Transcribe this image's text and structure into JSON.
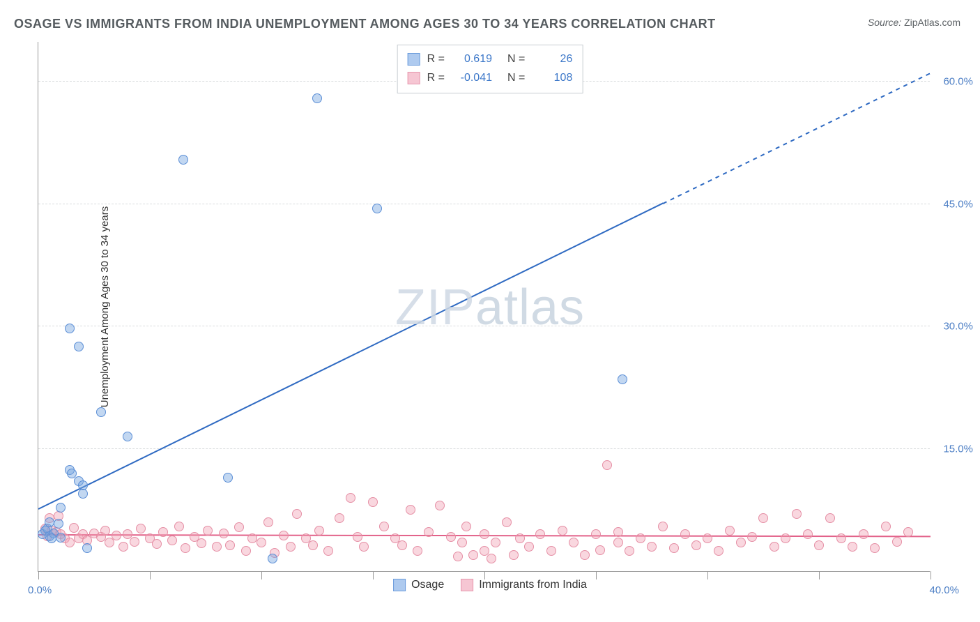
{
  "title": "OSAGE VS IMMIGRANTS FROM INDIA UNEMPLOYMENT AMONG AGES 30 TO 34 YEARS CORRELATION CHART",
  "source_label": "Source:",
  "source_value": "ZipAtlas.com",
  "ylabel": "Unemployment Among Ages 30 to 34 years",
  "watermark_a": "ZIP",
  "watermark_b": "atlas",
  "chart": {
    "type": "scatter",
    "xlim": [
      0,
      40
    ],
    "ylim": [
      0,
      65
    ],
    "background_color": "#ffffff",
    "grid_color": "#d9dcde",
    "axis_color": "#999999",
    "tick_label_color": "#4d7fc5",
    "x_tick_positions": [
      0,
      5,
      10,
      15,
      20,
      25,
      30,
      35,
      40
    ],
    "x_axis_start_label": "0.0%",
    "x_axis_end_label": "40.0%",
    "y_ticks": [
      {
        "pos": 15,
        "label": "15.0%"
      },
      {
        "pos": 30,
        "label": "30.0%"
      },
      {
        "pos": 45,
        "label": "45.0%"
      },
      {
        "pos": 60,
        "label": "60.0%"
      }
    ],
    "legend_top": {
      "rows": [
        {
          "swatch": "blue",
          "r_label": "R =",
          "r_value": "0.619",
          "n_label": "N =",
          "n_value": "26"
        },
        {
          "swatch": "pink",
          "r_label": "R =",
          "r_value": "-0.041",
          "n_label": "N =",
          "n_value": "108"
        }
      ]
    },
    "legend_bottom": [
      {
        "swatch": "blue",
        "label": "Osage"
      },
      {
        "swatch": "pink",
        "label": "Immigrants from India"
      }
    ],
    "series": [
      {
        "name": "Osage",
        "color_fill": "#78a7e1",
        "color_stroke": "#5c8fd6",
        "marker_size": 14,
        "trend": {
          "color": "#2f6ac2",
          "width": 2,
          "start": [
            0,
            7.5
          ],
          "solid_end": [
            28,
            45
          ],
          "dash_end": [
            40,
            61
          ]
        },
        "points": [
          [
            0.2,
            4.5
          ],
          [
            0.3,
            5.0
          ],
          [
            0.4,
            5.2
          ],
          [
            0.5,
            6.0
          ],
          [
            0.5,
            4.3
          ],
          [
            0.7,
            4.6
          ],
          [
            0.9,
            5.8
          ],
          [
            1.0,
            7.8
          ],
          [
            1.0,
            4.1
          ],
          [
            1.4,
            12.4
          ],
          [
            1.5,
            12.0
          ],
          [
            1.4,
            29.8
          ],
          [
            1.8,
            11.0
          ],
          [
            1.8,
            27.5
          ],
          [
            2.0,
            10.5
          ],
          [
            2.0,
            9.5
          ],
          [
            2.2,
            2.8
          ],
          [
            2.8,
            19.5
          ],
          [
            4.0,
            16.5
          ],
          [
            6.5,
            50.5
          ],
          [
            8.5,
            11.5
          ],
          [
            10.5,
            1.5
          ],
          [
            12.5,
            58.0
          ],
          [
            15.2,
            44.5
          ],
          [
            26.2,
            23.5
          ],
          [
            0.6,
            4.0
          ]
        ]
      },
      {
        "name": "Immigrants from India",
        "color_fill": "#f09baf",
        "color_stroke": "#e58fa5",
        "marker_size": 14,
        "trend": {
          "color": "#e26189",
          "width": 2,
          "start": [
            0,
            4.4
          ],
          "end": [
            40,
            4.2
          ]
        },
        "points": [
          [
            0.3,
            5.2
          ],
          [
            0.4,
            4.3
          ],
          [
            0.5,
            6.5
          ],
          [
            0.6,
            5.0
          ],
          [
            0.8,
            4.8
          ],
          [
            0.9,
            6.8
          ],
          [
            1.0,
            4.5
          ],
          [
            1.2,
            4.0
          ],
          [
            1.4,
            3.5
          ],
          [
            1.6,
            5.3
          ],
          [
            1.8,
            4.0
          ],
          [
            2.0,
            4.5
          ],
          [
            2.2,
            3.8
          ],
          [
            2.5,
            4.6
          ],
          [
            2.8,
            4.2
          ],
          [
            3.0,
            5.0
          ],
          [
            3.2,
            3.5
          ],
          [
            3.5,
            4.4
          ],
          [
            3.8,
            3.0
          ],
          [
            4.0,
            4.5
          ],
          [
            4.3,
            3.6
          ],
          [
            4.6,
            5.2
          ],
          [
            5.0,
            4.0
          ],
          [
            5.3,
            3.3
          ],
          [
            5.6,
            4.8
          ],
          [
            6.0,
            3.8
          ],
          [
            6.3,
            5.5
          ],
          [
            6.6,
            2.8
          ],
          [
            7.0,
            4.2
          ],
          [
            7.3,
            3.4
          ],
          [
            7.6,
            5.0
          ],
          [
            8.0,
            3.0
          ],
          [
            8.3,
            4.6
          ],
          [
            8.6,
            3.2
          ],
          [
            9.0,
            5.4
          ],
          [
            9.3,
            2.5
          ],
          [
            9.6,
            4.0
          ],
          [
            10.0,
            3.5
          ],
          [
            10.3,
            6.0
          ],
          [
            10.6,
            2.2
          ],
          [
            11.0,
            4.4
          ],
          [
            11.3,
            3.0
          ],
          [
            11.6,
            7.0
          ],
          [
            12.0,
            4.0
          ],
          [
            12.3,
            3.2
          ],
          [
            12.6,
            5.0
          ],
          [
            13.0,
            2.5
          ],
          [
            13.5,
            6.5
          ],
          [
            14.0,
            9.0
          ],
          [
            14.3,
            4.2
          ],
          [
            14.6,
            3.0
          ],
          [
            15.0,
            8.5
          ],
          [
            15.5,
            5.5
          ],
          [
            16.0,
            4.0
          ],
          [
            16.3,
            3.2
          ],
          [
            16.7,
            7.5
          ],
          [
            17.0,
            2.5
          ],
          [
            17.5,
            4.8
          ],
          [
            18.0,
            8.0
          ],
          [
            18.5,
            4.2
          ],
          [
            18.8,
            1.8
          ],
          [
            19.0,
            3.5
          ],
          [
            19.2,
            5.5
          ],
          [
            19.5,
            2.0
          ],
          [
            20.0,
            4.5
          ],
          [
            20.0,
            2.5
          ],
          [
            20.3,
            1.5
          ],
          [
            20.5,
            3.5
          ],
          [
            21.0,
            6.0
          ],
          [
            21.3,
            2.0
          ],
          [
            21.6,
            4.0
          ],
          [
            22.0,
            3.0
          ],
          [
            22.5,
            4.5
          ],
          [
            23.0,
            2.5
          ],
          [
            23.5,
            5.0
          ],
          [
            24.0,
            3.5
          ],
          [
            24.5,
            2.0
          ],
          [
            25.0,
            4.5
          ],
          [
            25.2,
            2.6
          ],
          [
            25.5,
            13.0
          ],
          [
            26.0,
            3.5
          ],
          [
            26.0,
            4.8
          ],
          [
            26.5,
            2.5
          ],
          [
            27.0,
            4.0
          ],
          [
            27.5,
            3.0
          ],
          [
            28.0,
            5.5
          ],
          [
            28.5,
            2.8
          ],
          [
            29.0,
            4.5
          ],
          [
            29.5,
            3.2
          ],
          [
            30.0,
            4.0
          ],
          [
            30.5,
            2.5
          ],
          [
            31.0,
            5.0
          ],
          [
            31.5,
            3.5
          ],
          [
            32.0,
            4.2
          ],
          [
            32.5,
            6.5
          ],
          [
            33.0,
            3.0
          ],
          [
            33.5,
            4.0
          ],
          [
            34.0,
            7.0
          ],
          [
            34.5,
            4.5
          ],
          [
            35.0,
            3.2
          ],
          [
            35.5,
            6.5
          ],
          [
            36.0,
            4.0
          ],
          [
            36.5,
            3.0
          ],
          [
            37.0,
            4.5
          ],
          [
            37.5,
            2.8
          ],
          [
            38.0,
            5.5
          ],
          [
            38.5,
            3.6
          ],
          [
            39.0,
            4.8
          ]
        ]
      }
    ]
  }
}
